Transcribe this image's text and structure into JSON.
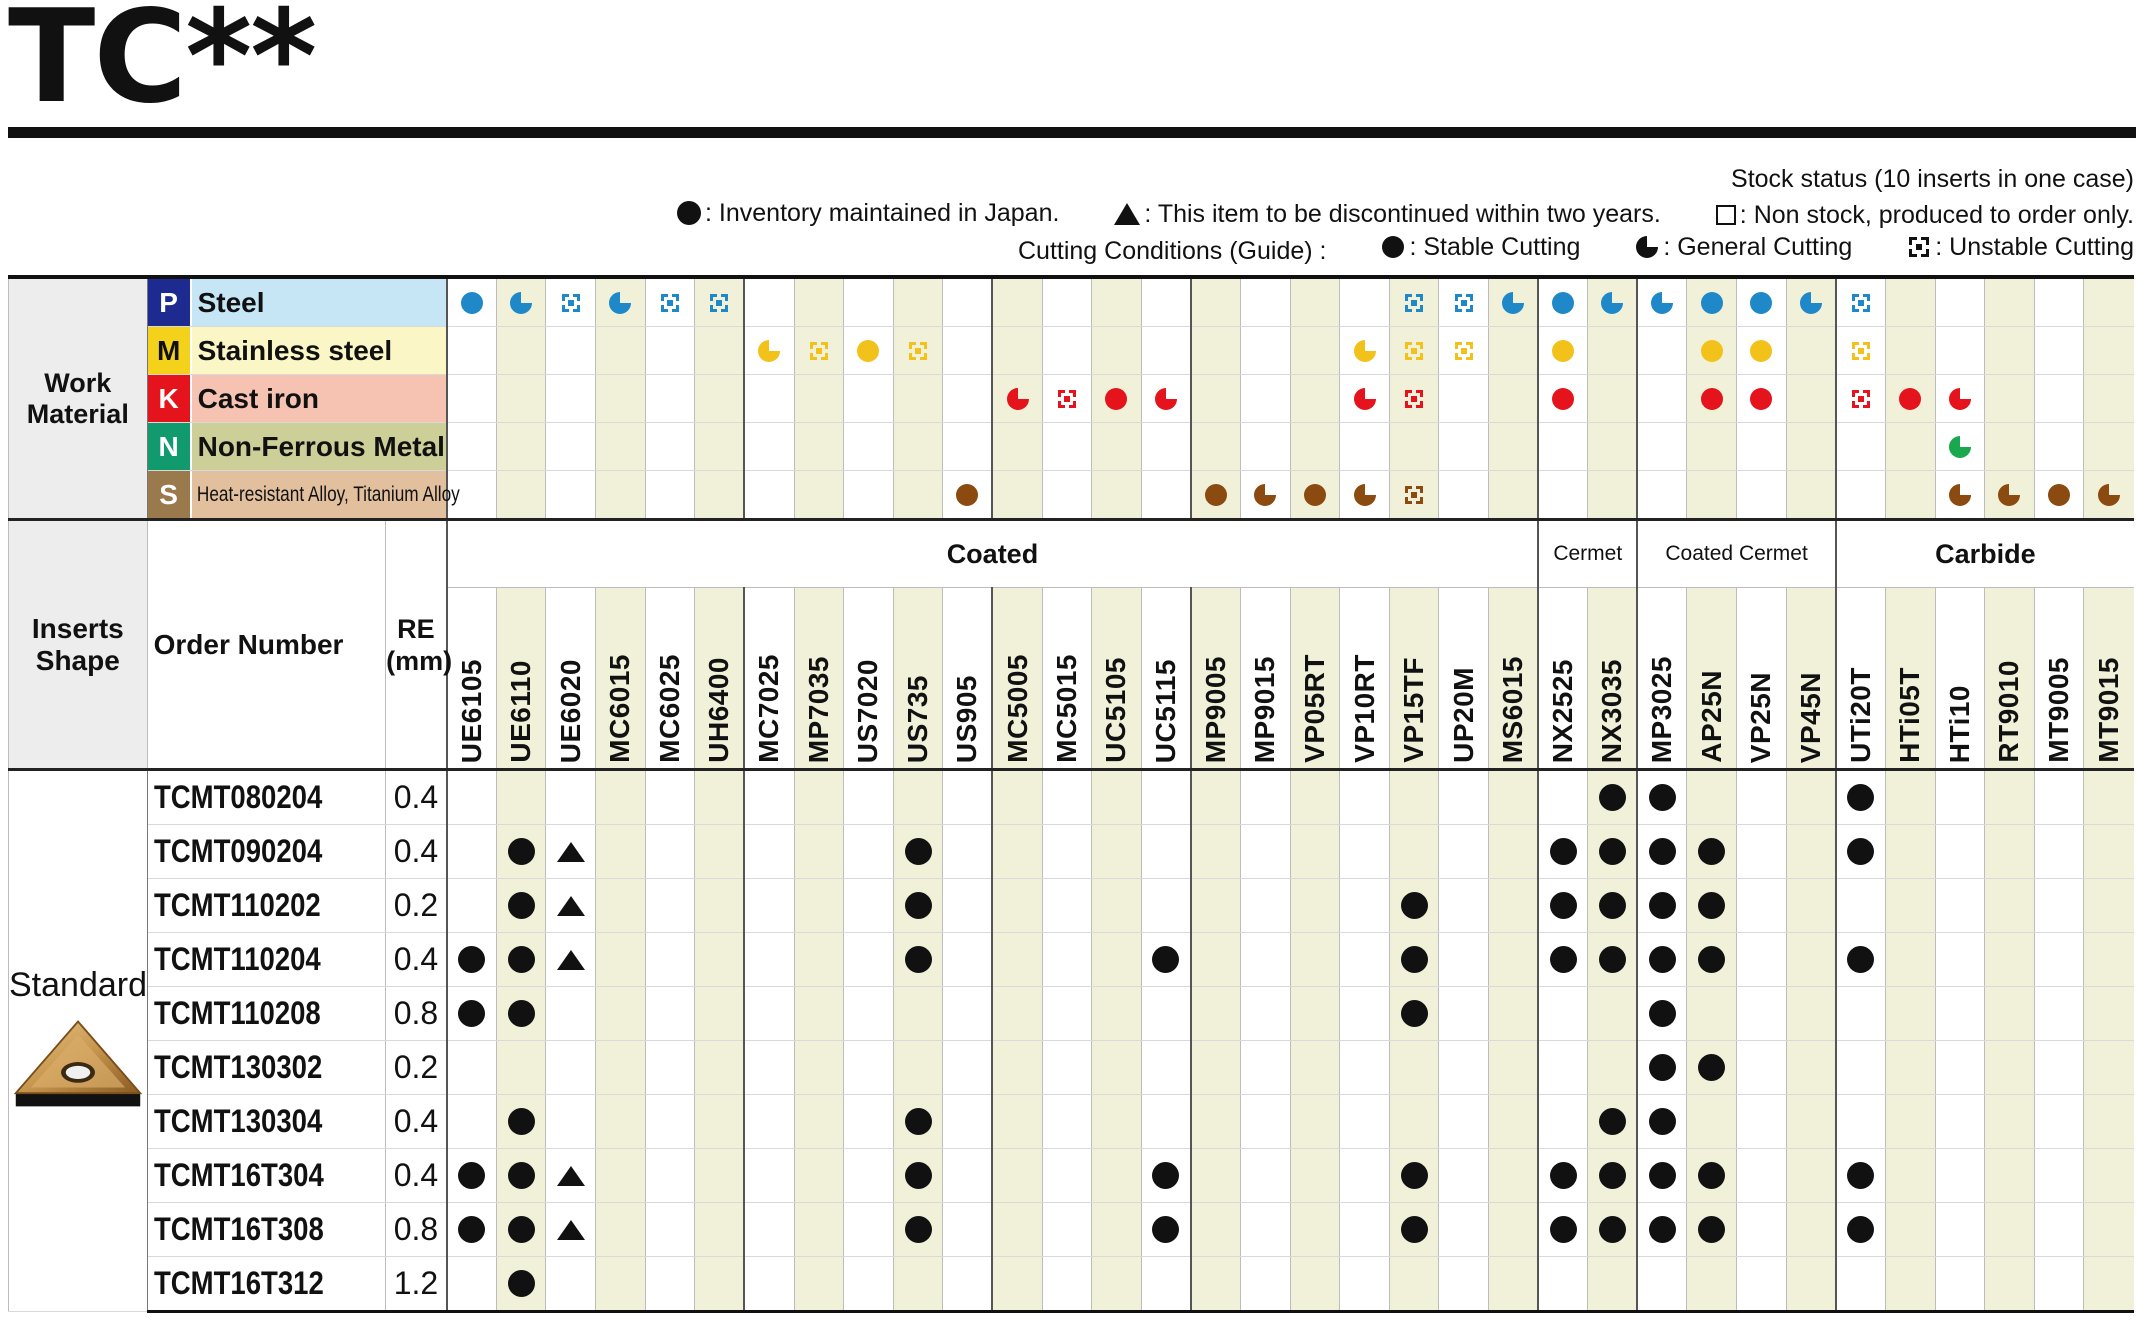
{
  "title": "TC**",
  "legend": {
    "stock_status_title": "Stock status (10 inserts in one case)",
    "inventory": ": Inventory maintained in Japan.",
    "discontinued": ": This item to be discontinued within two years.",
    "non_stock": ": Non stock, produced to order only.",
    "cutting_title": "Cutting Conditions (Guide) :",
    "stable": ": Stable Cutting",
    "general": ": General Cutting",
    "unstable": ": Unstable Cutting"
  },
  "work_material": {
    "label": "Work Material",
    "rows": [
      {
        "letter": "P",
        "name": "Steel",
        "letter_color": "#1d2a8f",
        "bg": "#c6e6f6",
        "mark_color": "#1e88c9"
      },
      {
        "letter": "M",
        "name": "Stainless steel",
        "letter_color": "#f4d21c",
        "bg": "#fbf6c6",
        "mark_color": "#f2c21a"
      },
      {
        "letter": "K",
        "name": "Cast iron",
        "letter_color": "#e5141c",
        "bg": "#f6c3b3",
        "mark_color": "#e5141c"
      },
      {
        "letter": "N",
        "name": "Non-Ferrous Metal",
        "letter_color": "#109a6e",
        "bg": "#cdcf99",
        "mark_color": "#1aa84e"
      },
      {
        "letter": "S",
        "name": "Heat-resistant Alloy, Titanium Alloy",
        "letter_color": "#9a7a4c",
        "bg": "#e2c09e",
        "mark_color": "#8a4a10"
      }
    ]
  },
  "header": {
    "inserts_shape": "Inserts Shape",
    "order_number": "Order Number",
    "re_label": "RE",
    "re_unit": "(mm)"
  },
  "groups": [
    {
      "name": "Coated",
      "span": 22
    },
    {
      "name": "Cermet",
      "span": 2
    },
    {
      "name": "Coated Cermet",
      "span": 4
    },
    {
      "name": "Carbide",
      "span": 6
    }
  ],
  "grades": [
    "UE6105",
    "UE6110",
    "UE6020",
    "MC6015",
    "MC6025",
    "UH6400",
    "MC7025",
    "MP7035",
    "US7020",
    "US735",
    "US905",
    "MC5005",
    "MC5015",
    "UC5105",
    "UC5115",
    "MP9005",
    "MP9015",
    "VP05RT",
    "VP10RT",
    "VP15TF",
    "UP20M",
    "MS6015",
    "NX2525",
    "NX3035",
    "MP3025",
    "AP25N",
    "VP25N",
    "VP45N",
    "UTi20T",
    "HTi05T",
    "HTi10",
    "RT9010",
    "MT9005",
    "MT9015"
  ],
  "material_marks": {
    "P": [
      "s",
      "g",
      "u",
      "g",
      "u",
      "u",
      "",
      "",
      "",
      "",
      "",
      "",
      "",
      "",
      "",
      "",
      "",
      "",
      "",
      "u",
      "u",
      "g",
      "s",
      "g",
      "g",
      "s",
      "s",
      "g",
      "u",
      "",
      "",
      "",
      "",
      ""
    ],
    "M": [
      "",
      "",
      "",
      "",
      "",
      "",
      "g",
      "u",
      "s",
      "u",
      "",
      "",
      "",
      "",
      "",
      "",
      "",
      "",
      "g",
      "u",
      "u",
      "",
      "s",
      "",
      "",
      "s",
      "s",
      "",
      "u",
      "",
      "",
      "",
      "",
      ""
    ],
    "K": [
      "",
      "",
      "",
      "",
      "",
      "",
      "",
      "",
      "",
      "",
      "",
      "g",
      "u",
      "s",
      "g",
      "",
      "",
      "",
      "g",
      "u",
      "",
      "",
      "s",
      "",
      "",
      "s",
      "s",
      "",
      "u",
      "s",
      "g",
      "",
      "",
      ""
    ],
    "N": [
      "",
      "",
      "",
      "",
      "",
      "",
      "",
      "",
      "",
      "",
      "",
      "",
      "",
      "",
      "",
      "",
      "",
      "",
      "",
      "",
      "",
      "",
      "",
      "",
      "",
      "",
      "",
      "",
      "",
      "",
      "g",
      "",
      "",
      ""
    ],
    "S": [
      "",
      "",
      "",
      "",
      "",
      "",
      "",
      "",
      "",
      "",
      "s",
      "",
      "",
      "",
      "",
      "s",
      "g",
      "s",
      "g",
      "u",
      "",
      "",
      "",
      "",
      "",
      "",
      "",
      "",
      "",
      "",
      "g",
      "g",
      "s",
      "g"
    ]
  },
  "section_label": "Standard",
  "rows": [
    {
      "order": "TCMT080204",
      "re": "0.4",
      "marks": {
        "NX3035": "dot",
        "MP3025": "dot",
        "UTi20T": "dot"
      }
    },
    {
      "order": "TCMT090204",
      "re": "0.4",
      "marks": {
        "UE6110": "dot",
        "UE6020": "tri",
        "US735": "dot",
        "NX2525": "dot",
        "NX3035": "dot",
        "MP3025": "dot",
        "AP25N": "dot",
        "UTi20T": "dot"
      }
    },
    {
      "order": "TCMT110202",
      "re": "0.2",
      "marks": {
        "UE6110": "dot",
        "UE6020": "tri",
        "US735": "dot",
        "VP15TF": "dot",
        "NX2525": "dot",
        "NX3035": "dot",
        "MP3025": "dot",
        "AP25N": "dot"
      }
    },
    {
      "order": "TCMT110204",
      "re": "0.4",
      "marks": {
        "UE6105": "dot",
        "UE6110": "dot",
        "UE6020": "tri",
        "US735": "dot",
        "UC5115": "dot",
        "VP15TF": "dot",
        "NX2525": "dot",
        "NX3035": "dot",
        "MP3025": "dot",
        "AP25N": "dot",
        "UTi20T": "dot"
      }
    },
    {
      "order": "TCMT110208",
      "re": "0.8",
      "marks": {
        "UE6105": "dot",
        "UE6110": "dot",
        "VP15TF": "dot",
        "MP3025": "dot"
      }
    },
    {
      "order": "TCMT130302",
      "re": "0.2",
      "marks": {
        "MP3025": "dot",
        "AP25N": "dot"
      }
    },
    {
      "order": "TCMT130304",
      "re": "0.4",
      "marks": {
        "UE6110": "dot",
        "US735": "dot",
        "NX3035": "dot",
        "MP3025": "dot"
      }
    },
    {
      "order": "TCMT16T304",
      "re": "0.4",
      "marks": {
        "UE6105": "dot",
        "UE6110": "dot",
        "UE6020": "tri",
        "US735": "dot",
        "UC5115": "dot",
        "VP15TF": "dot",
        "NX2525": "dot",
        "NX3035": "dot",
        "MP3025": "dot",
        "AP25N": "dot",
        "UTi20T": "dot"
      }
    },
    {
      "order": "TCMT16T308",
      "re": "0.8",
      "marks": {
        "UE6105": "dot",
        "UE6110": "dot",
        "UE6020": "tri",
        "US735": "dot",
        "UC5115": "dot",
        "VP15TF": "dot",
        "NX2525": "dot",
        "NX3035": "dot",
        "MP3025": "dot",
        "AP25N": "dot",
        "UTi20T": "dot"
      }
    },
    {
      "order": "TCMT16T312",
      "re": "1.2",
      "marks": {
        "UE6110": "dot"
      }
    }
  ]
}
